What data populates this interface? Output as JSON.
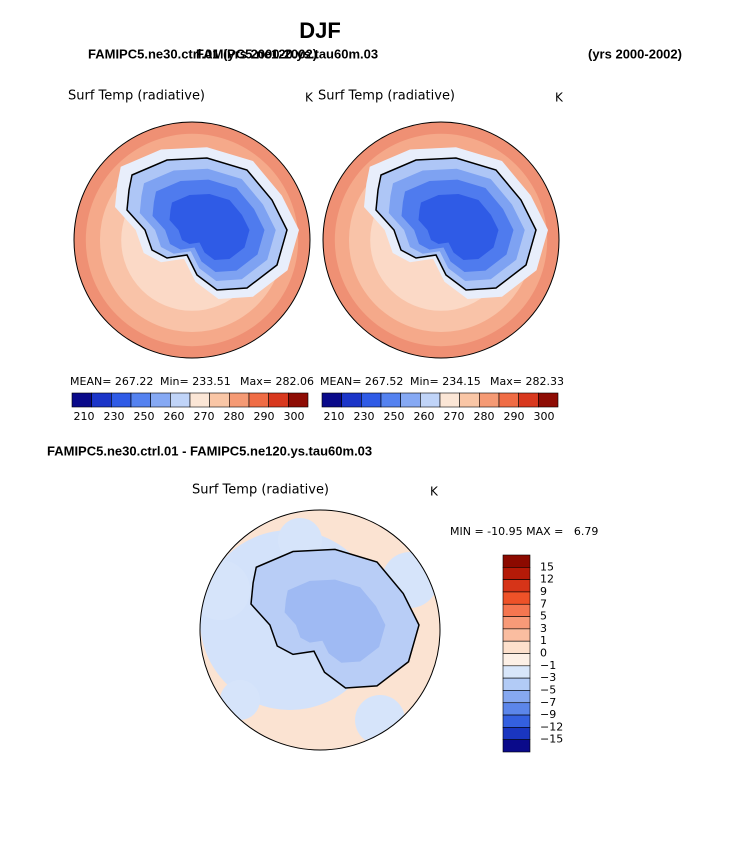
{
  "header": {
    "title": "DJF",
    "case1": "FAMIPC5.ne30.ctrl.01 (yrs 2000-2002)",
    "case2": "FAMIPC5.ne120.ys.tau60m.03",
    "years2": "(yrs 2000-2002)"
  },
  "panels": [
    {
      "variable": "Surf Temp (radiative)",
      "units": "K",
      "mean": "MEAN= 267.22",
      "min": "Min= 233.51",
      "max": "Max= 282.06"
    },
    {
      "variable": "Surf Temp (radiative)",
      "units": "K",
      "mean": "MEAN= 267.52",
      "min": "Min= 234.15",
      "max": "Max= 282.33"
    }
  ],
  "colorbar": {
    "labels": [
      "210",
      "230",
      "250",
      "260",
      "270",
      "280",
      "290",
      "300"
    ],
    "colors": [
      "#0a0a8a",
      "#1b35c8",
      "#2f5be6",
      "#5482f0",
      "#86a9f4",
      "#c0d4f8",
      "#fbe6d6",
      "#f9c6a6",
      "#f59a74",
      "#ef6c45",
      "#d8381e",
      "#8e0c04"
    ]
  },
  "difference": {
    "title": "FAMIPC5.ne30.ctrl.01 - FAMIPC5.ne120.ys.tau60m.03",
    "variable": "Surf Temp (radiative)",
    "units": "K",
    "stats": "MIN = -10.95 MAX =   6.79",
    "labels": [
      "15",
      "12",
      "9",
      "7",
      "5",
      "3",
      "1",
      "0",
      "−1",
      "−3",
      "−5",
      "−7",
      "−9",
      "−12",
      "−15"
    ],
    "colors": [
      "#8c0a00",
      "#b51a08",
      "#d63418",
      "#ee5228",
      "#f57650",
      "#f89a78",
      "#fabda0",
      "#fde0cc",
      "#fdf0e6",
      "#d8e6fa",
      "#b2cbf6",
      "#86a8f0",
      "#5c86ea",
      "#3460e0",
      "#1a36c0",
      "#0a0a8a"
    ]
  }
}
